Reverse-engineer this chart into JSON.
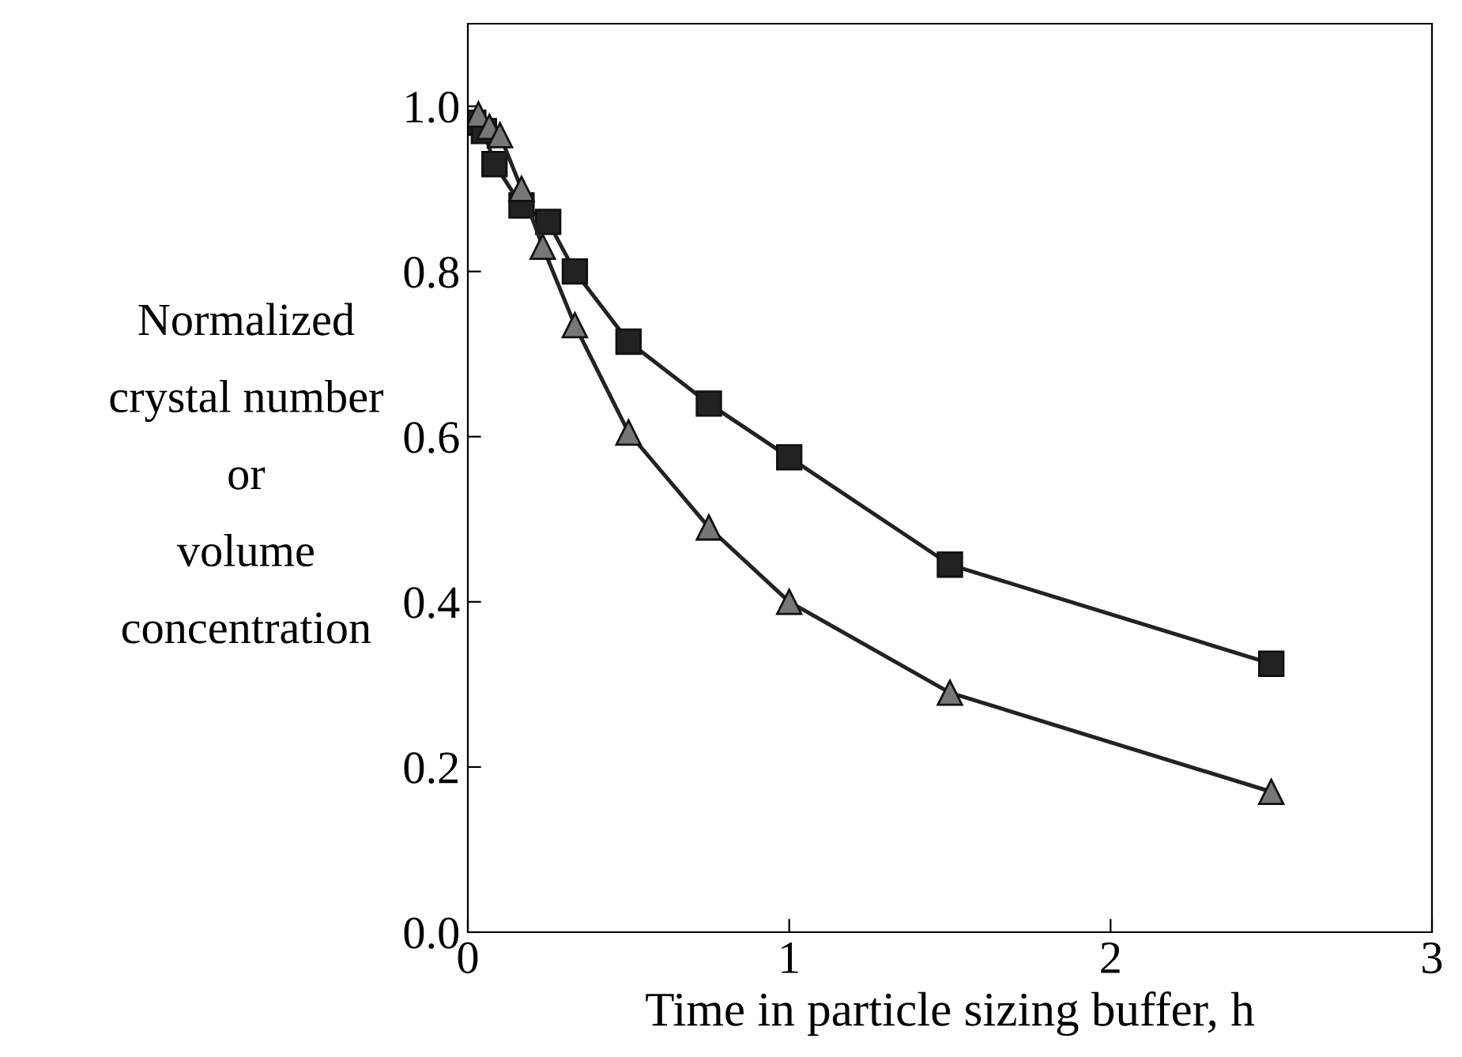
{
  "chart_data": {
    "type": "line",
    "xlabel": "Time in particle sizing buffer, h",
    "ylabel": "Normalized\ncrystal number\nor\nvolume\nconcentration",
    "xlim": [
      0,
      3
    ],
    "xticks": [
      0,
      1,
      2,
      3
    ],
    "ylim": [
      0,
      1.1
    ],
    "yticks": [
      {
        "value": 0,
        "label": "0.0"
      },
      0.2,
      0.4,
      0.6,
      0.8,
      {
        "value": 1,
        "label": "1.0"
      }
    ],
    "grid": false,
    "legend": false,
    "series": [
      {
        "color": "#222222",
        "marker": "square",
        "x": [
          0.017,
          0.05,
          0.083,
          0.167,
          0.25,
          0.333,
          0.5,
          0.75,
          1,
          1.5,
          2.5
        ],
        "values": [
          0.98,
          0.97,
          0.93,
          0.88,
          0.86,
          0.8,
          0.715,
          0.64,
          0.575,
          0.445,
          0.325
        ]
      },
      {
        "color": "#777777",
        "marker": "triangle",
        "x": [
          0.033,
          0.067,
          0.1,
          0.167,
          0.233,
          0.333,
          0.5,
          0.75,
          1,
          1.5,
          2.5
        ],
        "values": [
          0.99,
          0.975,
          0.965,
          0.9,
          0.83,
          0.735,
          0.605,
          0.49,
          0.4,
          0.29,
          0.17
        ]
      }
    ]
  }
}
